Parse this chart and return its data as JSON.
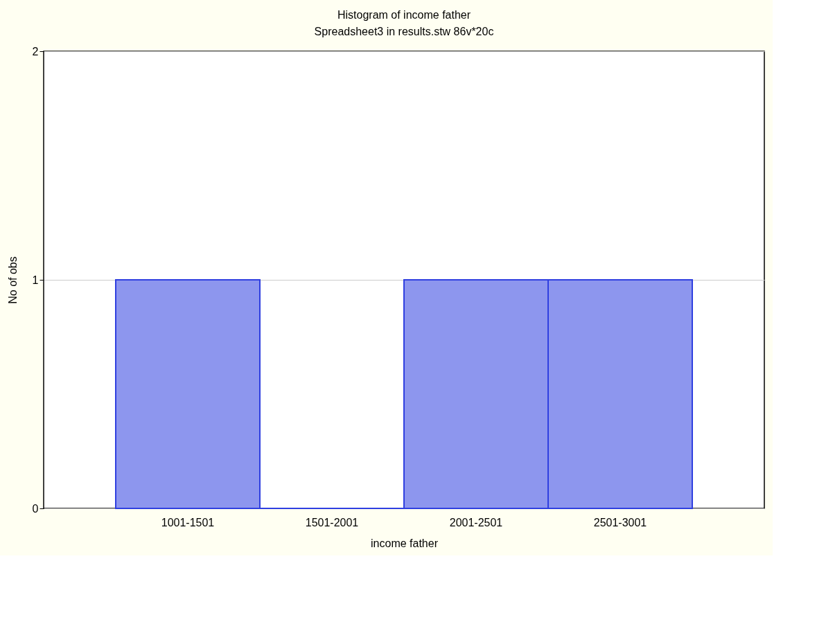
{
  "chart_data": {
    "type": "bar",
    "title": "Histogram of income father",
    "subtitle": "Spreadsheet3 in results.stw 86v*20c",
    "xlabel": "income father",
    "ylabel": "No of obs",
    "categories": [
      "1001-1501",
      "1501-2001",
      "2001-2501",
      "2501-3001"
    ],
    "values": [
      1,
      0,
      1,
      1
    ],
    "color": "#2f3fe0",
    "ylim": [
      0,
      2
    ],
    "yticks": [
      0,
      1,
      2
    ],
    "grid": "y"
  }
}
